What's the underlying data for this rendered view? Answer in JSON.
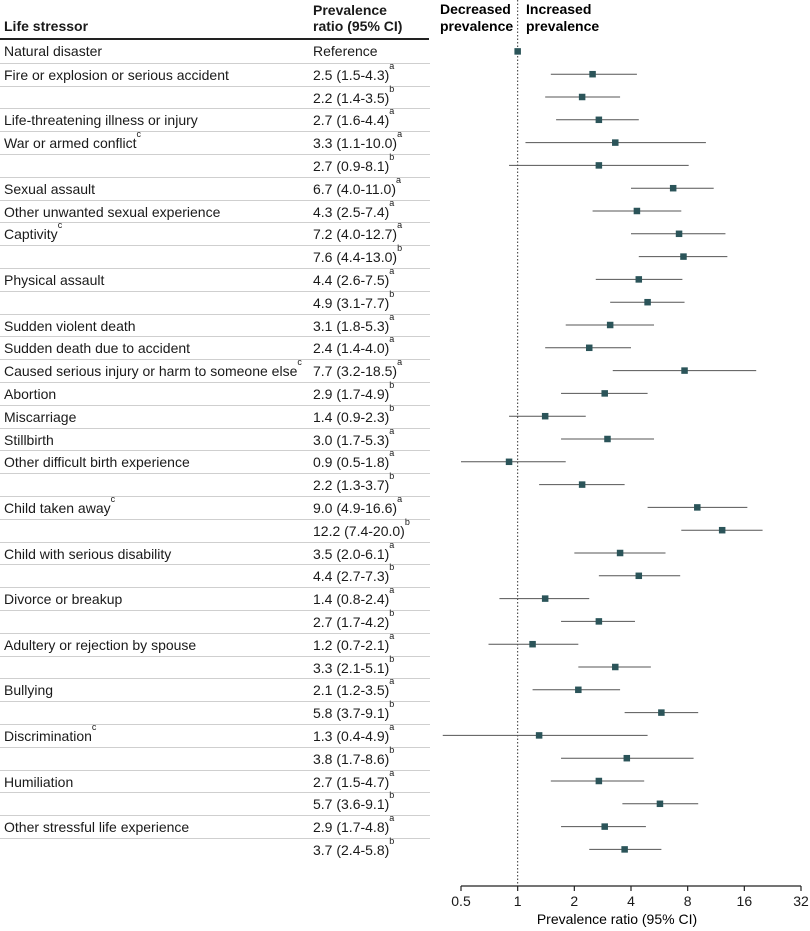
{
  "table": {
    "col_stressor": "Life stressor",
    "col_ratio_line1": "Prevalence",
    "col_ratio_line2": "ratio (95% CI)"
  },
  "plot": {
    "decreased_line1": "Decreased",
    "decreased_line2": "prevalence",
    "increased_line1": "Increased",
    "increased_line2": "prevalence",
    "xlabel": "Prevalence ratio (95% CI)"
  },
  "colors": {
    "marker": "#2b5459",
    "ci_line": "#555555",
    "rule": "#cfcfcf",
    "axis": "#222222"
  },
  "chart_data": {
    "type": "forest",
    "xscale": "log2",
    "xlim": [
      0.5,
      32
    ],
    "xticks": [
      0.5,
      1,
      2,
      4,
      8,
      16,
      32
    ],
    "xtick_labels": [
      "0.5",
      "1",
      "2",
      "4",
      "8",
      "16",
      "32"
    ],
    "reference_line": 1,
    "rows": [
      {
        "label": "Natural disaster",
        "sup": "",
        "ratio": "Reference",
        "rsup": "",
        "est": 1,
        "lo": null,
        "hi": null
      },
      {
        "label": "Fire or explosion or serious accident",
        "sup": "",
        "ratio": "2.5 (1.5-4.3)",
        "rsup": "a",
        "est": 2.5,
        "lo": 1.5,
        "hi": 4.3
      },
      {
        "label": "",
        "sup": "",
        "ratio": "2.2 (1.4-3.5)",
        "rsup": "b",
        "est": 2.2,
        "lo": 1.4,
        "hi": 3.5
      },
      {
        "label": "Life-threatening illness or injury",
        "sup": "",
        "ratio": "2.7 (1.6-4.4)",
        "rsup": "a",
        "est": 2.7,
        "lo": 1.6,
        "hi": 4.4
      },
      {
        "label": "War or armed conflict",
        "sup": "c",
        "ratio": "3.3 (1.1-10.0)",
        "rsup": "a",
        "est": 3.3,
        "lo": 1.1,
        "hi": 10.0
      },
      {
        "label": "",
        "sup": "",
        "ratio": "2.7 (0.9-8.1)",
        "rsup": "b",
        "est": 2.7,
        "lo": 0.9,
        "hi": 8.1
      },
      {
        "label": "Sexual assault",
        "sup": "",
        "ratio": "6.7 (4.0-11.0)",
        "rsup": "a",
        "est": 6.7,
        "lo": 4.0,
        "hi": 11.0
      },
      {
        "label": "Other unwanted sexual experience",
        "sup": "",
        "ratio": "4.3 (2.5-7.4)",
        "rsup": "a",
        "est": 4.3,
        "lo": 2.5,
        "hi": 7.4
      },
      {
        "label": "Captivity",
        "sup": "c",
        "ratio": "7.2 (4.0-12.7)",
        "rsup": "a",
        "est": 7.2,
        "lo": 4.0,
        "hi": 12.7
      },
      {
        "label": "",
        "sup": "",
        "ratio": "7.6 (4.4-13.0)",
        "rsup": "b",
        "est": 7.6,
        "lo": 4.4,
        "hi": 13.0
      },
      {
        "label": "Physical assault",
        "sup": "",
        "ratio": "4.4 (2.6-7.5)",
        "rsup": "a",
        "est": 4.4,
        "lo": 2.6,
        "hi": 7.5
      },
      {
        "label": "",
        "sup": "",
        "ratio": "4.9 (3.1-7.7)",
        "rsup": "b",
        "est": 4.9,
        "lo": 3.1,
        "hi": 7.7
      },
      {
        "label": "Sudden violent death",
        "sup": "",
        "ratio": "3.1 (1.8-5.3)",
        "rsup": "a",
        "est": 3.1,
        "lo": 1.8,
        "hi": 5.3
      },
      {
        "label": "Sudden death due to accident",
        "sup": "",
        "ratio": "2.4 (1.4-4.0)",
        "rsup": "a",
        "est": 2.4,
        "lo": 1.4,
        "hi": 4.0
      },
      {
        "label": "Caused serious injury or harm to someone else",
        "sup": "c",
        "ratio": "7.7 (3.2-18.5)",
        "rsup": "a",
        "est": 7.7,
        "lo": 3.2,
        "hi": 18.5
      },
      {
        "label": "Abortion",
        "sup": "",
        "ratio": "2.9 (1.7-4.9)",
        "rsup": "b",
        "est": 2.9,
        "lo": 1.7,
        "hi": 4.9
      },
      {
        "label": "Miscarriage",
        "sup": "",
        "ratio": "1.4 (0.9-2.3)",
        "rsup": "b",
        "est": 1.4,
        "lo": 0.9,
        "hi": 2.3
      },
      {
        "label": "Stillbirth",
        "sup": "",
        "ratio": "3.0 (1.7-5.3)",
        "rsup": "a",
        "est": 3.0,
        "lo": 1.7,
        "hi": 5.3
      },
      {
        "label": "Other difficult birth experience",
        "sup": "",
        "ratio": "0.9 (0.5-1.8)",
        "rsup": "a",
        "est": 0.9,
        "lo": 0.5,
        "hi": 1.8
      },
      {
        "label": "",
        "sup": "",
        "ratio": "2.2 (1.3-3.7)",
        "rsup": "b",
        "est": 2.2,
        "lo": 1.3,
        "hi": 3.7
      },
      {
        "label": "Child taken away",
        "sup": "c",
        "ratio": "9.0 (4.9-16.6)",
        "rsup": "a",
        "est": 9.0,
        "lo": 4.9,
        "hi": 16.6
      },
      {
        "label": "",
        "sup": "",
        "ratio": "12.2 (7.4-20.0)",
        "rsup": "b",
        "est": 12.2,
        "lo": 7.4,
        "hi": 20.0
      },
      {
        "label": "Child with serious disability",
        "sup": "",
        "ratio": "3.5 (2.0-6.1)",
        "rsup": "a",
        "est": 3.5,
        "lo": 2.0,
        "hi": 6.1
      },
      {
        "label": "",
        "sup": "",
        "ratio": "4.4 (2.7-7.3)",
        "rsup": "b",
        "est": 4.4,
        "lo": 2.7,
        "hi": 7.3
      },
      {
        "label": "Divorce or breakup",
        "sup": "",
        "ratio": "1.4 (0.8-2.4)",
        "rsup": "a",
        "est": 1.4,
        "lo": 0.8,
        "hi": 2.4
      },
      {
        "label": "",
        "sup": "",
        "ratio": "2.7 (1.7-4.2)",
        "rsup": "b",
        "est": 2.7,
        "lo": 1.7,
        "hi": 4.2
      },
      {
        "label": "Adultery or rejection by spouse",
        "sup": "",
        "ratio": "1.2 (0.7-2.1)",
        "rsup": "a",
        "est": 1.2,
        "lo": 0.7,
        "hi": 2.1
      },
      {
        "label": "",
        "sup": "",
        "ratio": "3.3 (2.1-5.1)",
        "rsup": "b",
        "est": 3.3,
        "lo": 2.1,
        "hi": 5.1
      },
      {
        "label": "Bullying",
        "sup": "",
        "ratio": "2.1 (1.2-3.5)",
        "rsup": "a",
        "est": 2.1,
        "lo": 1.2,
        "hi": 3.5
      },
      {
        "label": "",
        "sup": "",
        "ratio": "5.8 (3.7-9.1)",
        "rsup": "b",
        "est": 5.8,
        "lo": 3.7,
        "hi": 9.1
      },
      {
        "label": "Discrimination",
        "sup": "c",
        "ratio": "1.3 (0.4-4.9)",
        "rsup": "a",
        "est": 1.3,
        "lo": 0.4,
        "hi": 4.9
      },
      {
        "label": "",
        "sup": "",
        "ratio": "3.8 (1.7-8.6)",
        "rsup": "b",
        "est": 3.8,
        "lo": 1.7,
        "hi": 8.6
      },
      {
        "label": "Humiliation",
        "sup": "",
        "ratio": "2.7 (1.5-4.7)",
        "rsup": "a",
        "est": 2.7,
        "lo": 1.5,
        "hi": 4.7
      },
      {
        "label": "",
        "sup": "",
        "ratio": "5.7 (3.6-9.1)",
        "rsup": "b",
        "est": 5.7,
        "lo": 3.6,
        "hi": 9.1
      },
      {
        "label": "Other stressful life experience",
        "sup": "",
        "ratio": "2.9 (1.7-4.8)",
        "rsup": "a",
        "est": 2.9,
        "lo": 1.7,
        "hi": 4.8
      },
      {
        "label": "",
        "sup": "",
        "ratio": "3.7 (2.4-5.8)",
        "rsup": "b",
        "est": 3.7,
        "lo": 2.4,
        "hi": 5.8
      }
    ]
  }
}
